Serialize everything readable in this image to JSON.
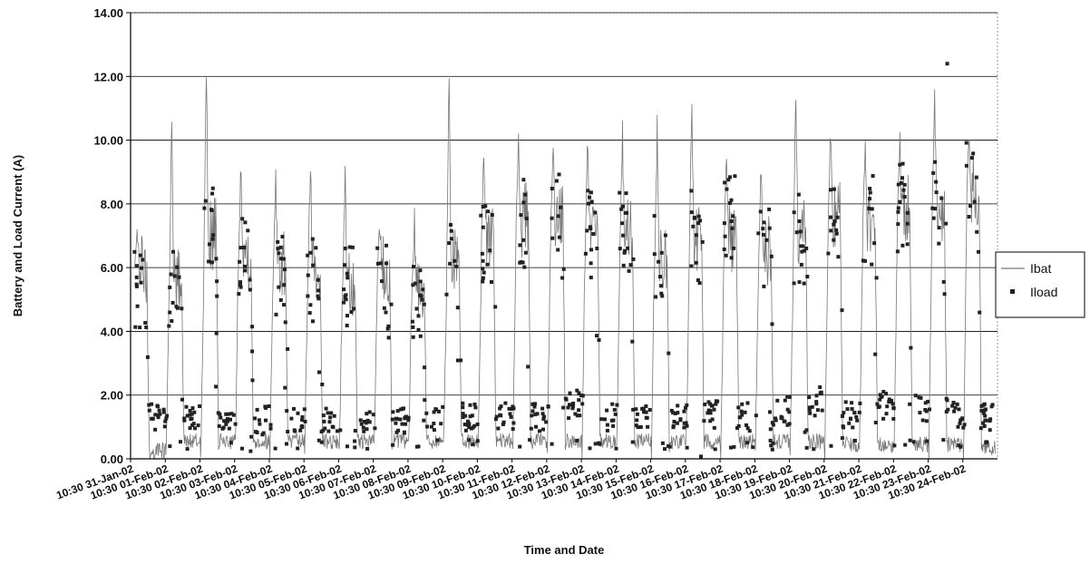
{
  "chart_data": {
    "type": "line",
    "xlabel": "Time and Date",
    "ylabel": "Battery and Load Current (A)",
    "ylim": [
      0,
      14
    ],
    "y_ticks": [
      "0.00",
      "2.00",
      "4.00",
      "6.00",
      "8.00",
      "10.00",
      "12.00",
      "14.00"
    ],
    "categories": [
      "10:30 31-Jan-02",
      "10:30 01-Feb-02",
      "10:30 02-Feb-02",
      "10:30 03-Feb-02",
      "10:30 04-Feb-02",
      "10:30 05-Feb-02",
      "10:30 06-Feb-02",
      "10:30 07-Feb-02",
      "10:30 08-Feb-02",
      "10:30 09-Feb-02",
      "10:30 10-Feb-02",
      "10:30 11-Feb-02",
      "10:30 12-Feb-02",
      "10:30 13-Feb-02",
      "10:30 14-Feb-02",
      "10:30 15-Feb-02",
      "10:30 16-Feb-02",
      "10:30 17-Feb-02",
      "10:30 18-Feb-02",
      "10:30 19-Feb-02",
      "10:30 20-Feb-02",
      "10:30 21-Feb-02",
      "10:30 22-Feb-02",
      "10:30 23-Feb-02",
      "10:30 24-Feb-02"
    ],
    "grid": "horizontal",
    "legend_position": "right",
    "series": [
      {
        "name": "Ibat",
        "style": "line",
        "color": "#777777",
        "daily_peak": [
          7.3,
          11.2,
          12.4,
          9.7,
          9.5,
          9.7,
          9.4,
          7.7,
          7.5,
          12.4,
          10.1,
          10.2,
          9.7,
          10.5,
          10.6,
          10.8,
          11.8,
          10.1,
          9.5,
          12.0,
          10.6,
          10.2,
          10.3,
          11.5,
          10.5
        ],
        "day_level": [
          6.0,
          5.5,
          7.0,
          6.5,
          6.0,
          6.0,
          5.5,
          6.0,
          5.5,
          6.5,
          7.0,
          7.5,
          7.5,
          7.0,
          7.0,
          6.5,
          7.0,
          7.0,
          6.5,
          7.0,
          7.5,
          7.5,
          8.0,
          8.0,
          8.5
        ],
        "night_min": [
          0.0,
          0.3,
          0.3,
          0.3,
          0.3,
          0.3,
          0.3,
          0.3,
          0.3,
          0.3,
          0.3,
          0.3,
          0.3,
          0.3,
          0.3,
          0.3,
          0.3,
          0.3,
          0.3,
          0.3,
          0.2,
          0.2,
          0.2,
          0.2,
          0.1
        ]
      },
      {
        "name": "Iload",
        "style": "marker",
        "color": "#222222",
        "day_level": [
          5.5,
          5.0,
          7.0,
          6.5,
          6.0,
          5.5,
          5.5,
          5.5,
          5.0,
          6.0,
          7.0,
          7.5,
          7.5,
          7.0,
          7.0,
          6.5,
          7.0,
          7.5,
          6.5,
          7.0,
          7.5,
          7.5,
          8.0,
          8.0,
          8.5
        ],
        "night_level": [
          1.3,
          1.2,
          1.3,
          1.2,
          1.2,
          1.2,
          1.2,
          1.2,
          1.3,
          1.3,
          1.3,
          1.3,
          1.7,
          1.3,
          1.4,
          1.3,
          1.4,
          1.3,
          1.5,
          1.8,
          1.4,
          1.7,
          1.6,
          1.4,
          1.3
        ],
        "max_value": 12.4
      }
    ]
  }
}
